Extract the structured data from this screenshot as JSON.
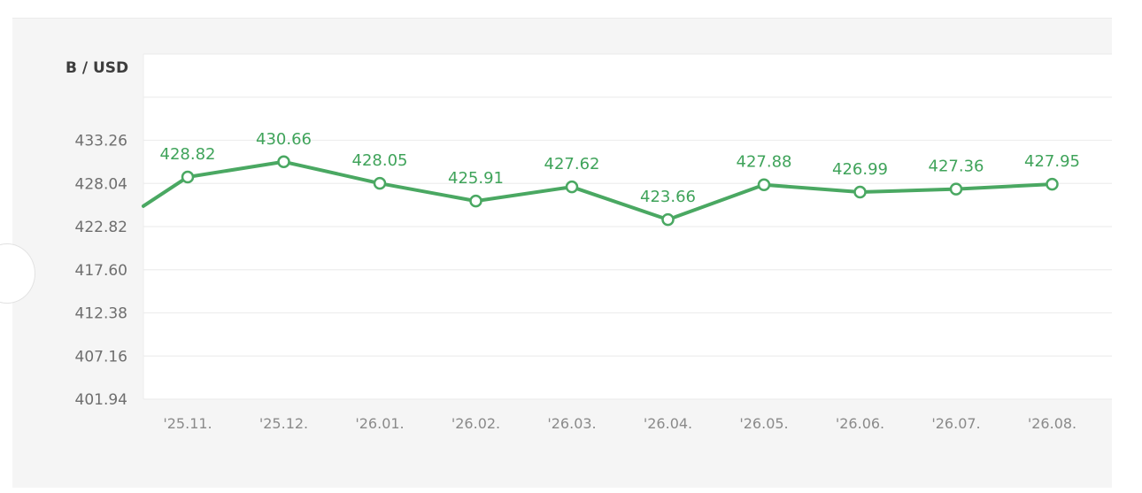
{
  "chart_data": {
    "type": "line",
    "unit_label": "B / USD",
    "x": [
      "'25.11.",
      "'25.12.",
      "'26.01.",
      "'26.02.",
      "'26.03.",
      "'26.04.",
      "'26.05.",
      "'26.06.",
      "'26.07.",
      "'26.08."
    ],
    "series": [
      {
        "values": [
          428.82,
          430.66,
          428.05,
          425.91,
          427.62,
          423.66,
          427.88,
          426.99,
          427.36,
          427.95
        ],
        "data_labels": [
          "428.82",
          "430.66",
          "428.05",
          "425.91",
          "427.62",
          "423.66",
          "427.88",
          "426.99",
          "427.36",
          "427.95"
        ],
        "color": "#4aa862",
        "entry_value": 425.3
      }
    ],
    "y_ticks": [
      "401.94",
      "407.16",
      "412.38",
      "417.60",
      "422.82",
      "428.04",
      "433.26"
    ],
    "ylim": [
      401.94,
      443.7
    ],
    "grid": true,
    "legend": "none"
  },
  "colors": {
    "line": "#4aa862",
    "label": "#3fa35a",
    "background": "#f5f5f5",
    "plot": "#ffffff",
    "gridline": "#eeeeee"
  }
}
